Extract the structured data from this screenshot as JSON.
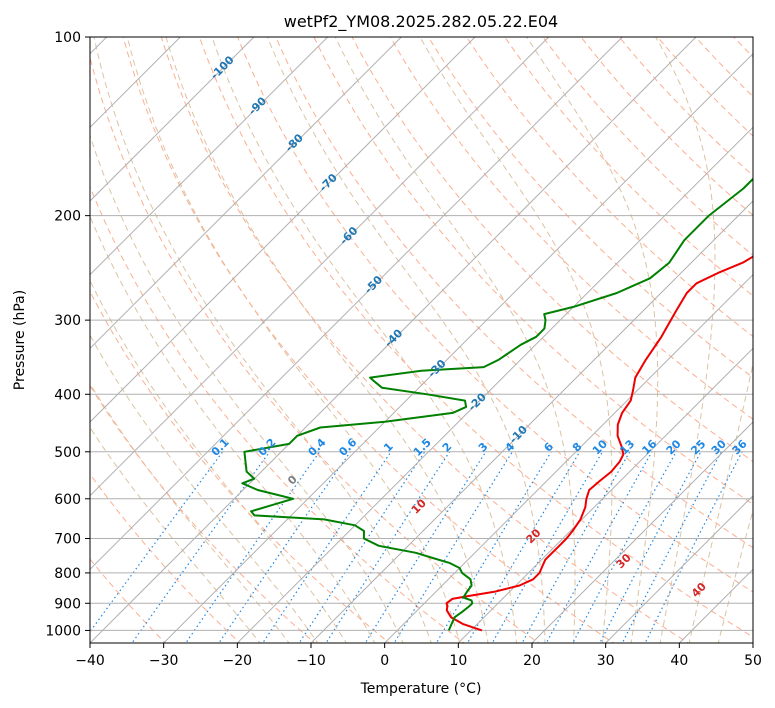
{
  "chart_data": {
    "type": "line",
    "title": "wetPf2_YM08.2025.282.05.22.E04",
    "xlabel": "Temperature (°C)",
    "ylabel": "Pressure (hPa)",
    "xlim": [
      -40,
      50
    ],
    "ylim": [
      1050,
      100
    ],
    "y_scale": "log",
    "grid": true,
    "x_ticks": [
      -40,
      -30,
      -20,
      -10,
      0,
      10,
      20,
      30,
      40,
      50
    ],
    "y_ticks": [
      100,
      200,
      300,
      400,
      500,
      600,
      700,
      800,
      900,
      1000
    ],
    "colors": {
      "temperature": "#ee0000",
      "dewpoint": "#008000",
      "mixing": "#1e88e5",
      "dry": "#1f77b4",
      "moist": "#d62728",
      "zero": "#7f7f7f"
    },
    "dry_adiabat_labels": [
      "-100",
      "-90",
      "-80",
      "-70",
      "-60",
      "-50",
      "-40",
      "-30",
      "-20",
      "-10"
    ],
    "mixing_ratio_labels": [
      "0.1",
      "0.2",
      "0.4",
      "0.6",
      "1",
      "1.5",
      "2",
      "3",
      "4",
      "6",
      "8",
      "10",
      "13",
      "16",
      "20",
      "25",
      "30",
      "36"
    ],
    "moist_adiabat_labels": [
      "0",
      "10",
      "20",
      "30",
      "40"
    ],
    "series": [
      {
        "name": "temperature",
        "points": [
          [
            1000,
            11.5
          ],
          [
            975,
            8
          ],
          [
            950,
            5.5
          ],
          [
            925,
            4
          ],
          [
            910,
            3.5
          ],
          [
            900,
            3
          ],
          [
            885,
            3.2
          ],
          [
            875,
            5
          ],
          [
            860,
            8
          ],
          [
            840,
            10.5
          ],
          [
            820,
            11.5
          ],
          [
            800,
            11.5
          ],
          [
            780,
            11
          ],
          [
            760,
            10.5
          ],
          [
            740,
            10.5
          ],
          [
            720,
            10.5
          ],
          [
            700,
            10.5
          ],
          [
            680,
            10.3
          ],
          [
            650,
            9.8
          ],
          [
            620,
            8.8
          ],
          [
            600,
            7.8
          ],
          [
            580,
            7
          ],
          [
            560,
            7.2
          ],
          [
            540,
            7.5
          ],
          [
            520,
            7.3
          ],
          [
            505,
            6.8
          ],
          [
            490,
            5.5
          ],
          [
            470,
            3.5
          ],
          [
            450,
            2
          ],
          [
            430,
            1
          ],
          [
            410,
            0.5
          ],
          [
            395,
            -0.5
          ],
          [
            375,
            -2
          ],
          [
            350,
            -3
          ],
          [
            320,
            -4
          ],
          [
            290,
            -5.5
          ],
          [
            270,
            -6.5
          ],
          [
            260,
            -6.5
          ],
          [
            250,
            -5
          ],
          [
            240,
            -3
          ],
          [
            230,
            -2
          ],
          [
            220,
            -1.5
          ],
          [
            210,
            0
          ],
          [
            200,
            2
          ],
          [
            185,
            5
          ],
          [
            170,
            8
          ],
          [
            160,
            11
          ],
          [
            150,
            13
          ],
          [
            140,
            15
          ],
          [
            130,
            17
          ],
          [
            120,
            20
          ],
          [
            110,
            22
          ],
          [
            100,
            24
          ]
        ]
      },
      {
        "name": "dewpoint",
        "points": [
          [
            1000,
            7
          ],
          [
            975,
            6.5
          ],
          [
            950,
            6
          ],
          [
            930,
            6.3
          ],
          [
            910,
            6.5
          ],
          [
            900,
            6.5
          ],
          [
            890,
            6
          ],
          [
            880,
            4.5
          ],
          [
            860,
            4.2
          ],
          [
            840,
            4
          ],
          [
            820,
            3
          ],
          [
            800,
            1
          ],
          [
            785,
            0
          ],
          [
            770,
            -2
          ],
          [
            755,
            -5
          ],
          [
            740,
            -8
          ],
          [
            720,
            -14
          ],
          [
            700,
            -17
          ],
          [
            680,
            -18
          ],
          [
            665,
            -20
          ],
          [
            650,
            -25
          ],
          [
            640,
            -35
          ],
          [
            630,
            -36
          ],
          [
            615,
            -34
          ],
          [
            600,
            -32
          ],
          [
            590,
            -35
          ],
          [
            580,
            -38
          ],
          [
            565,
            -41
          ],
          [
            555,
            -40
          ],
          [
            540,
            -42
          ],
          [
            500,
            -45
          ],
          [
            485,
            -40
          ],
          [
            470,
            -40
          ],
          [
            455,
            -38
          ],
          [
            445,
            -30
          ],
          [
            430,
            -22
          ],
          [
            420,
            -21
          ],
          [
            410,
            -22
          ],
          [
            400,
            -28
          ],
          [
            390,
            -35
          ],
          [
            380,
            -37
          ],
          [
            375,
            -38
          ],
          [
            365,
            -32
          ],
          [
            360,
            -24
          ],
          [
            350,
            -23
          ],
          [
            330,
            -22
          ],
          [
            320,
            -21
          ],
          [
            310,
            -21
          ],
          [
            300,
            -22
          ],
          [
            293,
            -23
          ],
          [
            285,
            -20
          ],
          [
            270,
            -16
          ],
          [
            255,
            -13.5
          ],
          [
            240,
            -13
          ],
          [
            230,
            -13.5
          ],
          [
            220,
            -14
          ],
          [
            200,
            -14
          ],
          [
            180,
            -13
          ],
          [
            165,
            -13
          ],
          [
            155,
            -12.5
          ],
          [
            150,
            -12
          ],
          [
            140,
            -9
          ],
          [
            130,
            -7
          ],
          [
            120,
            -4
          ],
          [
            110,
            -1
          ],
          [
            100,
            2
          ]
        ]
      }
    ]
  }
}
